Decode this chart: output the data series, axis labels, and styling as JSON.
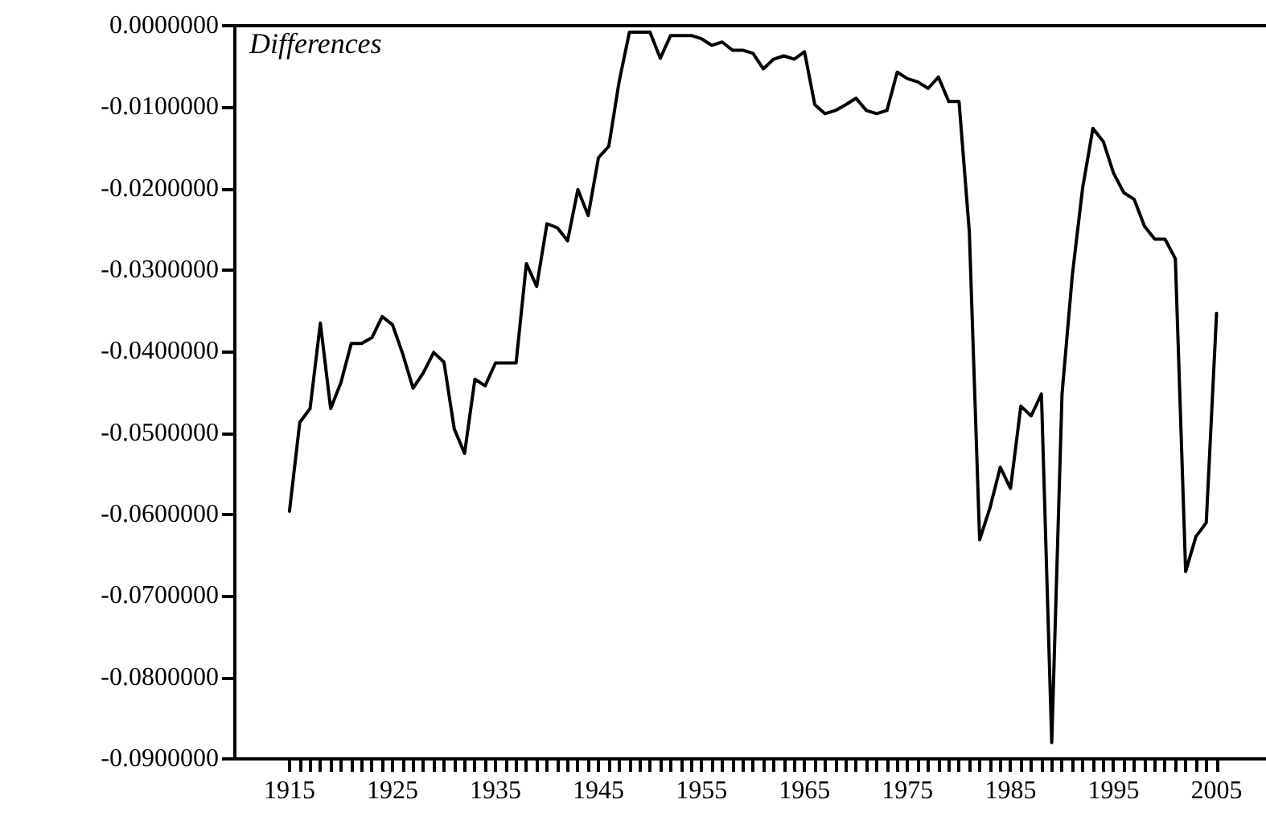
{
  "chart_data": {
    "type": "line",
    "x": [
      1915,
      1916,
      1917,
      1918,
      1919,
      1920,
      1921,
      1922,
      1923,
      1924,
      1925,
      1926,
      1927,
      1928,
      1929,
      1930,
      1931,
      1932,
      1933,
      1934,
      1935,
      1936,
      1937,
      1938,
      1939,
      1940,
      1941,
      1942,
      1943,
      1944,
      1945,
      1946,
      1947,
      1948,
      1949,
      1950,
      1951,
      1952,
      1953,
      1954,
      1955,
      1956,
      1957,
      1958,
      1959,
      1960,
      1961,
      1962,
      1963,
      1964,
      1965,
      1966,
      1967,
      1968,
      1969,
      1970,
      1971,
      1972,
      1973,
      1974,
      1975,
      1976,
      1977,
      1978,
      1979,
      1980,
      1981,
      1982,
      1983,
      1984,
      1985,
      1986,
      1987,
      1988,
      1989,
      1990,
      1991,
      1992,
      1993,
      1994,
      1995,
      1996,
      1997,
      1998,
      1999,
      2000,
      2001,
      2002,
      2003,
      2004,
      2005
    ],
    "series": [
      {
        "name": "Differences",
        "color": "#000000",
        "values": [
          -0.0596,
          -0.0487,
          -0.047,
          -0.0365,
          -0.047,
          -0.0438,
          -0.039,
          -0.039,
          -0.0383,
          -0.0357,
          -0.0367,
          -0.0403,
          -0.0445,
          -0.0426,
          -0.0401,
          -0.0413,
          -0.0495,
          -0.0525,
          -0.0434,
          -0.0442,
          -0.0414,
          -0.0414,
          -0.0414,
          -0.0292,
          -0.032,
          -0.0243,
          -0.0248,
          -0.0264,
          -0.0201,
          -0.0233,
          -0.0162,
          -0.0148,
          -0.0069,
          -0.0008,
          -0.0008,
          -0.0008,
          -0.004,
          -0.0012,
          -0.0012,
          -0.0012,
          -0.0016,
          -0.0024,
          -0.002,
          -0.003,
          -0.003,
          -0.0034,
          -0.0053,
          -0.0041,
          -0.0037,
          -0.0041,
          -0.0032,
          -0.0097,
          -0.0108,
          -0.0104,
          -0.0097,
          -0.0089,
          -0.0104,
          -0.0108,
          -0.0104,
          -0.0057,
          -0.0065,
          -0.0069,
          -0.0077,
          -0.0063,
          -0.0093,
          -0.0093,
          -0.0253,
          -0.0631,
          -0.0592,
          -0.0542,
          -0.0568,
          -0.0467,
          -0.0479,
          -0.0452,
          -0.088,
          -0.0452,
          -0.0306,
          -0.0199,
          -0.0126,
          -0.0142,
          -0.0181,
          -0.0205,
          -0.0213,
          -0.0246,
          -0.0262,
          -0.0262,
          -0.0286,
          -0.067,
          -0.0627,
          -0.061,
          -0.0353
        ]
      }
    ],
    "xlim": [
      1909.7,
      2009.8
    ],
    "xticks": [
      1915,
      {
        "value": 1916,
        "label": null
      },
      {
        "value": 1917,
        "label": null
      },
      {
        "value": 1918,
        "label": null
      },
      {
        "value": 1919,
        "label": null
      },
      {
        "value": 1920,
        "label": null
      },
      {
        "value": 1921,
        "label": null
      },
      {
        "value": 1922,
        "label": null
      },
      {
        "value": 1923,
        "label": null
      },
      {
        "value": 1924,
        "label": null
      },
      1925,
      {
        "value": 1926,
        "label": null
      },
      {
        "value": 1927,
        "label": null
      },
      {
        "value": 1928,
        "label": null
      },
      {
        "value": 1929,
        "label": null
      },
      {
        "value": 1930,
        "label": null
      },
      {
        "value": 1931,
        "label": null
      },
      {
        "value": 1932,
        "label": null
      },
      {
        "value": 1933,
        "label": null
      },
      {
        "value": 1934,
        "label": null
      },
      1935,
      {
        "value": 1936,
        "label": null
      },
      {
        "value": 1937,
        "label": null
      },
      {
        "value": 1938,
        "label": null
      },
      {
        "value": 1939,
        "label": null
      },
      {
        "value": 1940,
        "label": null
      },
      {
        "value": 1941,
        "label": null
      },
      {
        "value": 1942,
        "label": null
      },
      {
        "value": 1943,
        "label": null
      },
      {
        "value": 1944,
        "label": null
      },
      1945,
      {
        "value": 1946,
        "label": null
      },
      {
        "value": 1947,
        "label": null
      },
      {
        "value": 1948,
        "label": null
      },
      {
        "value": 1949,
        "label": null
      },
      {
        "value": 1950,
        "label": null
      },
      {
        "value": 1951,
        "label": null
      },
      {
        "value": 1952,
        "label": null
      },
      {
        "value": 1953,
        "label": null
      },
      {
        "value": 1954,
        "label": null
      },
      1955,
      {
        "value": 1956,
        "label": null
      },
      {
        "value": 1957,
        "label": null
      },
      {
        "value": 1958,
        "label": null
      },
      {
        "value": 1959,
        "label": null
      },
      {
        "value": 1960,
        "label": null
      },
      {
        "value": 1961,
        "label": null
      },
      {
        "value": 1962,
        "label": null
      },
      {
        "value": 1963,
        "label": null
      },
      {
        "value": 1964,
        "label": null
      },
      1965,
      {
        "value": 1966,
        "label": null
      },
      {
        "value": 1967,
        "label": null
      },
      {
        "value": 1968,
        "label": null
      },
      {
        "value": 1969,
        "label": null
      },
      {
        "value": 1970,
        "label": null
      },
      {
        "value": 1971,
        "label": null
      },
      {
        "value": 1972,
        "label": null
      },
      {
        "value": 1973,
        "label": null
      },
      {
        "value": 1974,
        "label": null
      },
      1975,
      {
        "value": 1976,
        "label": null
      },
      {
        "value": 1977,
        "label": null
      },
      {
        "value": 1978,
        "label": null
      },
      {
        "value": 1979,
        "label": null
      },
      {
        "value": 1980,
        "label": null
      },
      {
        "value": 1981,
        "label": null
      },
      {
        "value": 1982,
        "label": null
      },
      {
        "value": 1983,
        "label": null
      },
      {
        "value": 1984,
        "label": null
      },
      1985,
      {
        "value": 1986,
        "label": null
      },
      {
        "value": 1987,
        "label": null
      },
      {
        "value": 1988,
        "label": null
      },
      {
        "value": 1989,
        "label": null
      },
      {
        "value": 1990,
        "label": null
      },
      {
        "value": 1991,
        "label": null
      },
      {
        "value": 1992,
        "label": null
      },
      {
        "value": 1993,
        "label": null
      },
      {
        "value": 1994,
        "label": null
      },
      1995,
      {
        "value": 1996,
        "label": null
      },
      {
        "value": 1997,
        "label": null
      },
      {
        "value": 1998,
        "label": null
      },
      {
        "value": 1999,
        "label": null
      },
      {
        "value": 2000,
        "label": null
      },
      {
        "value": 2001,
        "label": null
      },
      {
        "value": 2002,
        "label": null
      },
      {
        "value": 2003,
        "label": null
      },
      {
        "value": 2004,
        "label": null
      },
      2005
    ],
    "ylim": [
      -0.09,
      0
    ],
    "yticks": [
      {
        "value": 0,
        "label": "0.0000000"
      },
      {
        "value": -0.01,
        "label": "-0.0100000"
      },
      {
        "value": -0.02,
        "label": "-0.0200000"
      },
      {
        "value": -0.03,
        "label": "-0.0300000"
      },
      {
        "value": -0.04,
        "label": "-0.0400000"
      },
      {
        "value": -0.05,
        "label": "-0.0500000"
      },
      {
        "value": -0.06,
        "label": "-0.0600000"
      },
      {
        "value": -0.07,
        "label": "-0.0700000"
      },
      {
        "value": -0.08,
        "label": "-0.0800000"
      },
      {
        "value": -0.09,
        "label": "-0.0900000"
      }
    ],
    "grid": false,
    "legend": "top left",
    "marker": "none",
    "line_style": "solid"
  }
}
